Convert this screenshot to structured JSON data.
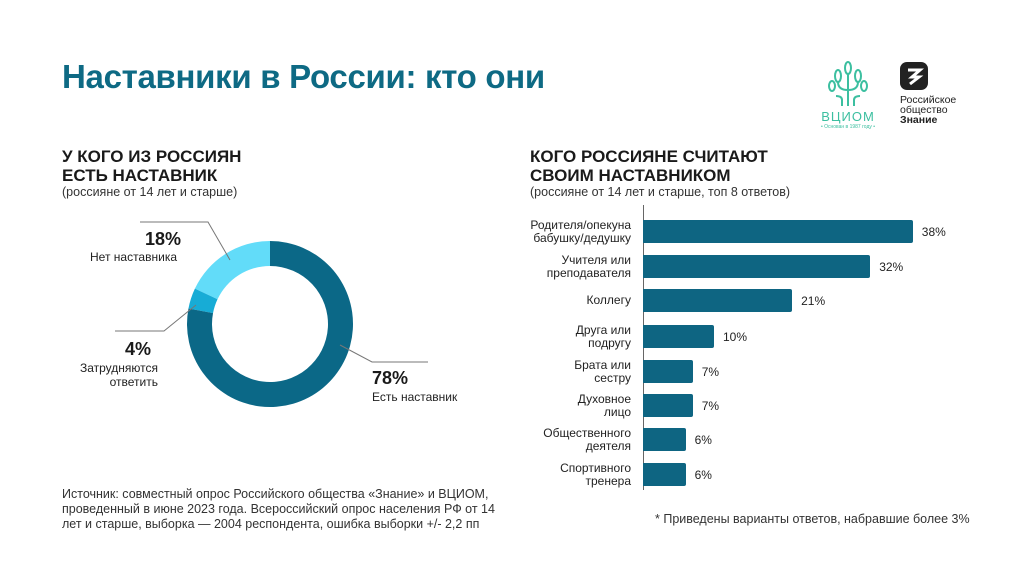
{
  "header": {
    "title": "Наставники в России: кто они",
    "logos": {
      "vciom": "ВЦИОМ",
      "vciom_tagline": "• Основан в 1987 году •",
      "znanie_line1": "Российское",
      "znanie_line2": "общество",
      "znanie_line3": "Знание"
    }
  },
  "colors": {
    "title": "#0e6a84",
    "dark": "#0b6887",
    "light": "#62dcf9",
    "mid": "#17acd6",
    "bar": "#0e6582"
  },
  "chart_data": [
    {
      "type": "pie",
      "donut": true,
      "title_line1": "У КОГО ИЗ РОССИЯН",
      "title_line2": "ЕСТЬ НАСТАВНИК",
      "subtitle": "(россияне от 14 лет и старше)",
      "slices": [
        {
          "value": 78,
          "label_value": "78%",
          "label": "Есть наставник"
        },
        {
          "value": 4,
          "label_value": "4%",
          "label_line1": "Затрудняются",
          "label_line2": "ответить"
        },
        {
          "value": 18,
          "label_value": "18%",
          "label": "Нет наставника"
        }
      ]
    },
    {
      "type": "bar",
      "orientation": "horizontal",
      "title_line1": "КОГО РОССИЯНЕ СЧИТАЮТ",
      "title_line2": "СВОИМ НАСТАВНИКОМ",
      "subtitle": "(россияне от 14 лет и старше, топ 8 ответов)",
      "categories": [
        [
          "Родителя/опекуна",
          "бабушку/дедушку"
        ],
        [
          "Учителя или",
          "преподавателя"
        ],
        [
          "Коллегу"
        ],
        [
          "Друга или",
          "подругу"
        ],
        [
          "Брата или",
          "сестру"
        ],
        [
          "Духовное",
          "лицо"
        ],
        [
          "Общественного",
          "деятеля"
        ],
        [
          "Спортивного",
          "тренера"
        ]
      ],
      "values": [
        38,
        32,
        21,
        10,
        7,
        7,
        6,
        6
      ],
      "value_labels": [
        "38%",
        "32%",
        "21%",
        "10%",
        "7%",
        "7%",
        "6%",
        "6%"
      ]
    }
  ],
  "footer": {
    "source_line1": "Источник: совместный опрос Российского общества «Знание» и ВЦИОМ,",
    "source_line2": "проведенный в июне 2023 года. Всероссийский опрос населения РФ от 14",
    "source_line3": "лет и старше, выборка — 2004 респондента, ошибка выборки +/- 2,2 пп",
    "footnote": "* Приведены варианты ответов, набравшие более 3%"
  }
}
